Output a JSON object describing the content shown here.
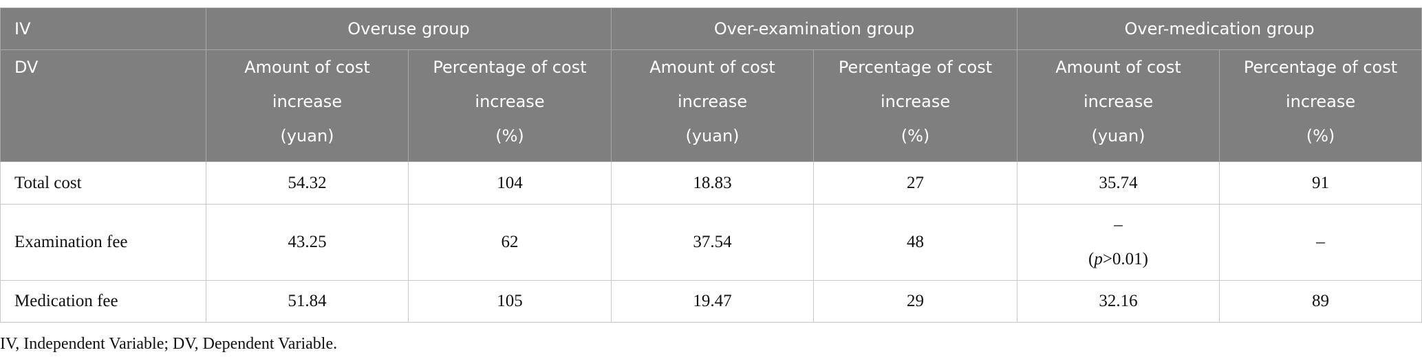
{
  "table": {
    "header_row_1": [
      "IV",
      "Overuse group",
      "Over-examination group",
      "Over-medication group"
    ],
    "header_row_2": {
      "label": "DV",
      "columns": [
        [
          "Amount of cost",
          "increase",
          "(yuan)"
        ],
        [
          "Percentage of cost",
          "increase",
          "(%)"
        ],
        [
          "Amount of cost",
          "increase",
          "(yuan)"
        ],
        [
          "Percentage of cost",
          "increase",
          "(%)"
        ],
        [
          "Amount of cost",
          "increase",
          "(yuan)"
        ],
        [
          "Percentage of cost",
          "increase",
          "(%)"
        ]
      ]
    },
    "rows": [
      [
        "Total cost",
        "54.32",
        "104",
        "18.83",
        "27",
        "35.74",
        "91"
      ],
      [
        "Examination fee",
        "43.25",
        "62",
        "37.54",
        "48",
        {
          "text": "–",
          "note": [
            "(",
            "p",
            ">0.01)"
          ]
        },
        "–"
      ],
      [
        "Medication fee",
        "51.84",
        "105",
        "19.47",
        "29",
        "32.16",
        "89"
      ]
    ]
  },
  "footnote": "IV, Independent Variable; DV, Dependent Variable."
}
